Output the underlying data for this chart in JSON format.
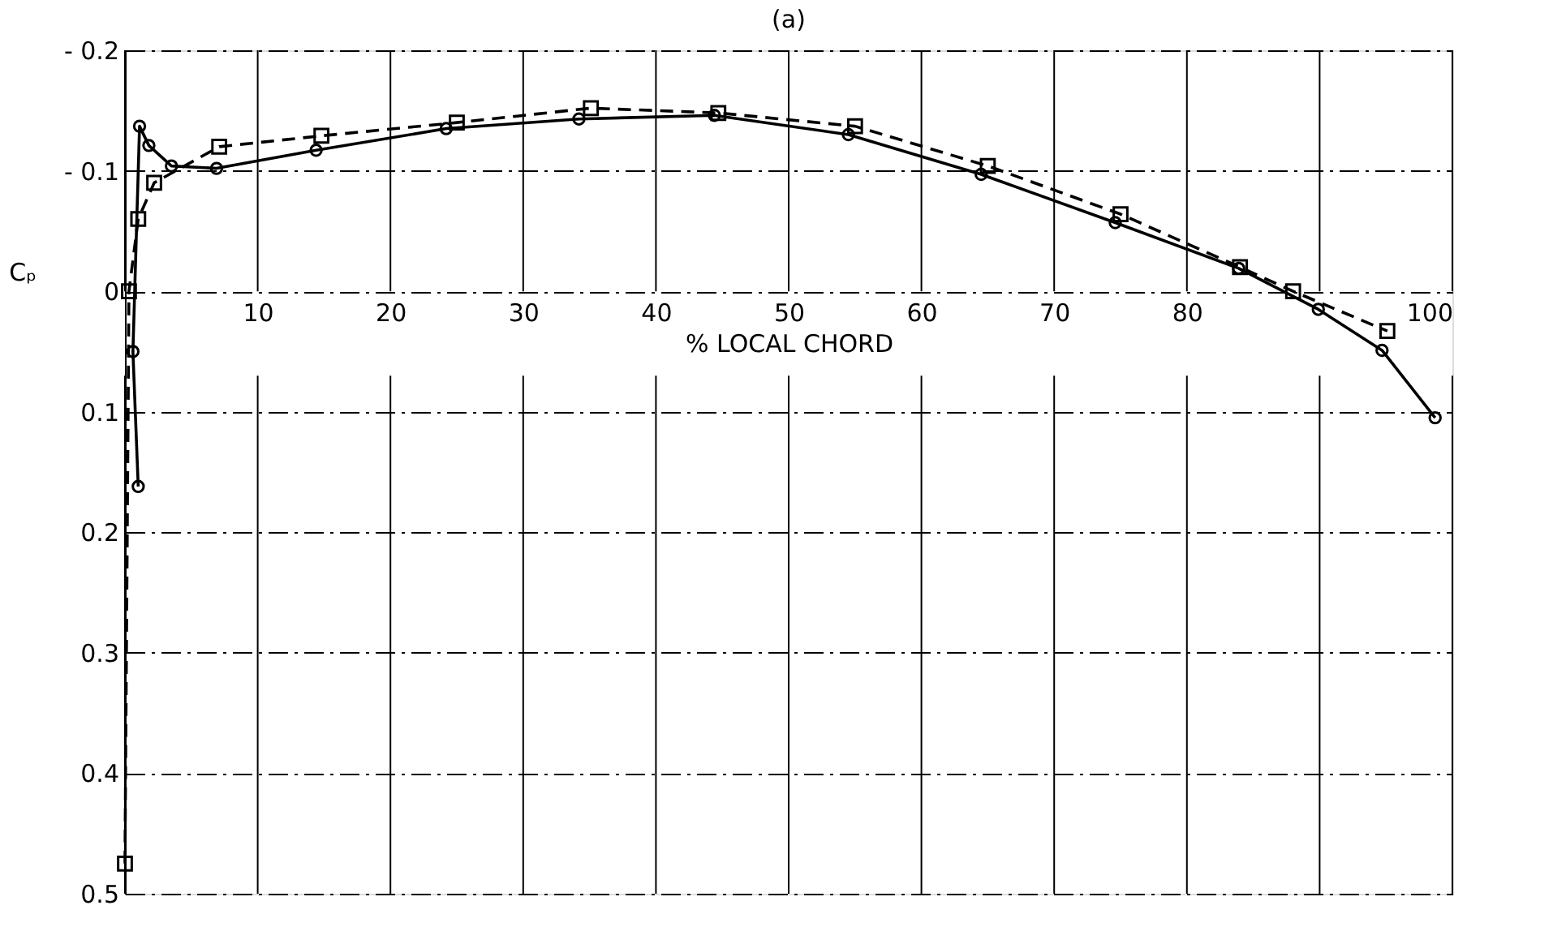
{
  "chart_data": {
    "type": "line",
    "title": "(a)",
    "xlabel": "% LOCAL CHORD",
    "ylabel": "Cₚ",
    "xlim": [
      0,
      100
    ],
    "xticks": [
      {
        "value": 0,
        "label": null
      },
      10,
      20,
      30,
      40,
      50,
      60,
      70,
      80,
      {
        "value": 90,
        "label": null
      },
      100
    ],
    "ylim": [
      0.5,
      -0.2
    ],
    "yticks": [
      {
        "value": -0.2,
        "label": "- 0.2"
      },
      {
        "value": -0.1,
        "label": "- 0.1"
      },
      0,
      0.1,
      0.2,
      0.3,
      0.4,
      0.5
    ],
    "grid": true,
    "series": [
      {
        "color": "#000000",
        "marker": "circle",
        "line_style": "solid",
        "x": [
          1.0,
          0.6,
          1.1,
          1.8,
          3.5,
          6.9,
          14.4,
          24.2,
          34.2,
          44.4,
          54.5,
          64.5,
          74.6,
          83.9,
          89.9,
          94.7,
          98.7
        ],
        "values": [
          0.162,
          0.05,
          -0.137,
          -0.121,
          -0.104,
          -0.102,
          -0.117,
          -0.135,
          -0.143,
          -0.146,
          -0.13,
          -0.097,
          -0.057,
          -0.019,
          0.015,
          0.049,
          0.105
        ]
      },
      {
        "color": "#000000",
        "marker": "square",
        "line_style": "dashed",
        "x": [
          0.0,
          0.3,
          1.0,
          2.2,
          7.1,
          14.8,
          25.0,
          35.1,
          44.7,
          55.0,
          65.0,
          75.0,
          84.0,
          88.0,
          95.1
        ],
        "values": [
          0.475,
          0.0,
          -0.06,
          -0.09,
          -0.12,
          -0.129,
          -0.14,
          -0.152,
          -0.148,
          -0.137,
          -0.104,
          -0.064,
          -0.02,
          0.0,
          0.033
        ]
      }
    ]
  }
}
